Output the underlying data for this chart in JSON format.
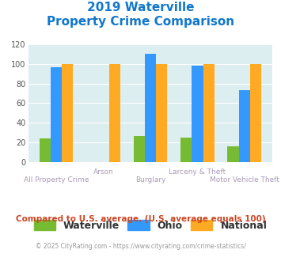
{
  "title_line1": "2019 Waterville",
  "title_line2": "Property Crime Comparison",
  "categories": [
    "All Property Crime",
    "Arson",
    "Burglary",
    "Larceny & Theft",
    "Motor Vehicle Theft"
  ],
  "waterville": [
    24,
    0,
    26,
    25,
    16
  ],
  "ohio": [
    97,
    0,
    110,
    98,
    73
  ],
  "national": [
    100,
    100,
    100,
    100,
    100
  ],
  "waterville_color": "#77bb33",
  "ohio_color": "#3399ff",
  "national_color": "#ffaa22",
  "ylim": [
    0,
    120
  ],
  "yticks": [
    0,
    20,
    40,
    60,
    80,
    100,
    120
  ],
  "background_color": "#ddeef0",
  "title_color": "#1177cc",
  "xticklabel_color": "#aa99bb",
  "footnote1": "Compared to U.S. average. (U.S. average equals 100)",
  "footnote2": "© 2025 CityRating.com - https://www.cityrating.com/crime-statistics/",
  "footnote1_color": "#cc4422",
  "footnote2_color": "#999999",
  "footnote2_link_color": "#3399ff",
  "legend_labels": [
    "Waterville",
    "Ohio",
    "National"
  ],
  "bar_width": 0.24,
  "row1_labels": [
    "",
    "Arson",
    "",
    "Larceny & Theft",
    ""
  ],
  "row2_labels": [
    "All Property Crime",
    "",
    "Burglary",
    "",
    "Motor Vehicle Theft"
  ]
}
